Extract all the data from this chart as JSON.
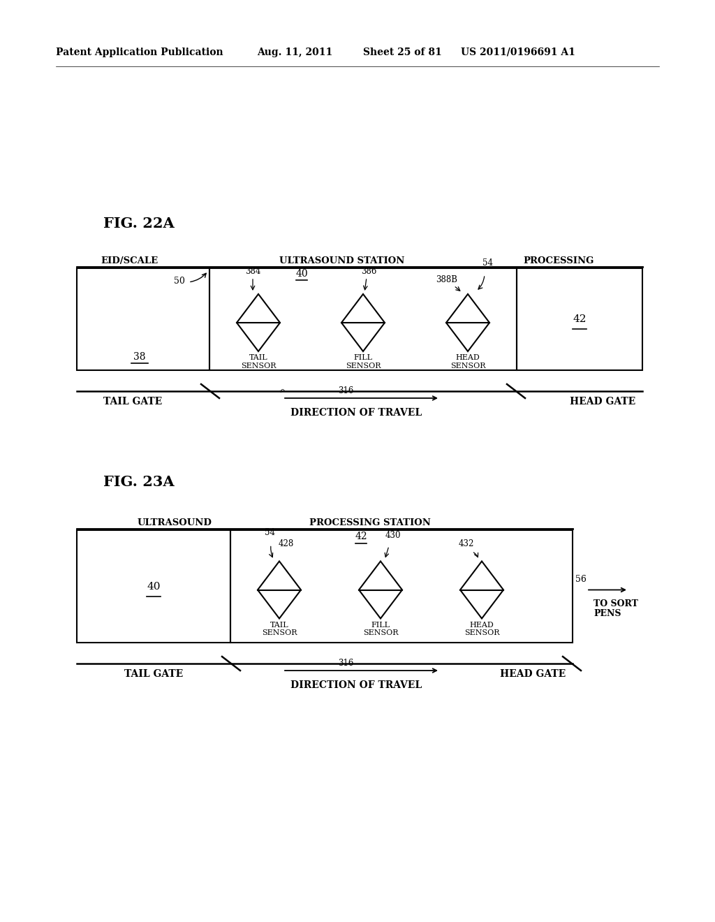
{
  "bg_color": "#ffffff",
  "header_text": "Patent Application Publication",
  "header_date": "Aug. 11, 2011",
  "header_sheet": "Sheet 25 of 81",
  "header_patent": "US 2011/0196691 A1",
  "fig22a_title": "FIG. 22A",
  "fig23a_title": "FIG. 23A",
  "fig22a": {
    "label_eid": "EID/SCALE",
    "label_ultra": "ULTRASOUND STATION",
    "label_proc": "PROCESSING",
    "num_50": "50",
    "num_38": "38",
    "num_42": "42",
    "num_40": "40",
    "num_384": "384",
    "num_386": "386",
    "num_54": "54",
    "num_388": "388B",
    "tail_gate": "TAIL GATE",
    "head_gate": "HEAD GATE",
    "direction": "DIRECTION OF TRAVEL",
    "num_316": "316"
  },
  "fig23a": {
    "label_ultra": "ULTRASOUND",
    "label_proc": "PROCESSING STATION",
    "num_40": "40",
    "num_42": "42",
    "num_54": "54",
    "num_56": "56",
    "num_428": "428",
    "num_430": "430",
    "num_432": "432",
    "tail_gate": "TAIL GATE",
    "head_gate": "HEAD GATE",
    "direction": "DIRECTION OF TRAVEL",
    "num_316": "316"
  }
}
